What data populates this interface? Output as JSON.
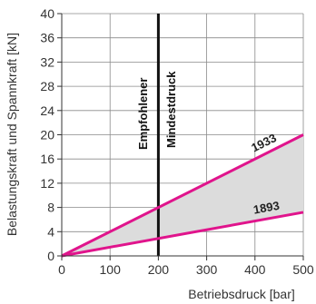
{
  "chart_data": {
    "type": "line",
    "xlabel": "Betriebsdruck [bar]",
    "ylabel": "Belastungskraft und Spannkraft [kN]",
    "xlim": [
      0,
      500
    ],
    "ylim": [
      0,
      40
    ],
    "x_ticks": [
      0,
      100,
      200,
      300,
      400,
      500
    ],
    "y_ticks": [
      0,
      4,
      8,
      12,
      16,
      20,
      24,
      28,
      32,
      36,
      40
    ],
    "grid": true,
    "series": [
      {
        "name": "1933",
        "x": [
          0,
          500
        ],
        "y": [
          0,
          20
        ],
        "color": "#e0148c"
      },
      {
        "name": "1893",
        "x": [
          0,
          500
        ],
        "y": [
          0,
          7.2
        ],
        "color": "#e0148c"
      }
    ],
    "shaded_region": {
      "between": [
        "1933",
        "1893"
      ],
      "color": "#dcdcdc"
    },
    "reference_line": {
      "x": 200,
      "color": "#111111",
      "labels": [
        "Empfohlener",
        "Mindestdruck"
      ]
    }
  }
}
